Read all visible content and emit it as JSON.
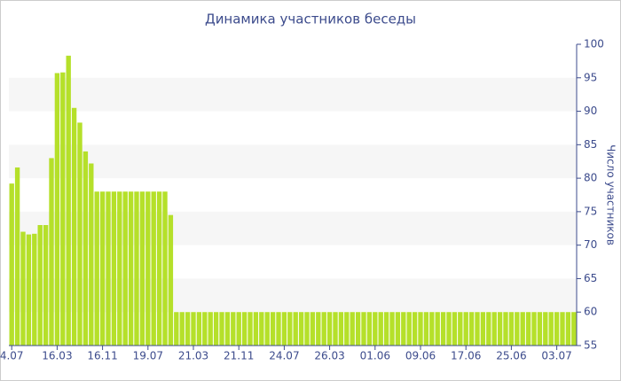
{
  "chart_data": {
    "type": "bar",
    "title": "Динамика участников беседы",
    "y_label": "Число участников",
    "categories": [
      "4.07",
      null,
      null,
      null,
      null,
      null,
      null,
      null,
      "16.03",
      null,
      null,
      null,
      null,
      null,
      null,
      null,
      "16.11",
      null,
      null,
      null,
      null,
      null,
      null,
      null,
      "19.07",
      null,
      null,
      null,
      null,
      null,
      null,
      null,
      "21.03",
      null,
      null,
      null,
      null,
      null,
      null,
      null,
      "21.11",
      null,
      null,
      null,
      null,
      null,
      null,
      null,
      "24.07",
      null,
      null,
      null,
      null,
      null,
      null,
      null,
      "26.03",
      null,
      null,
      null,
      null,
      null,
      null,
      null,
      "01.06",
      null,
      null,
      null,
      null,
      null,
      null,
      null,
      "09.06",
      null,
      null,
      null,
      null,
      null,
      null,
      null,
      "17.06",
      null,
      null,
      null,
      null,
      null,
      null,
      null,
      "25.06",
      null,
      null,
      null,
      null,
      null,
      null,
      null,
      "03.07",
      null,
      null,
      null
    ],
    "values": [
      79.2,
      81.6,
      72,
      71.6,
      71.7,
      73,
      73,
      83,
      95.7,
      95.8,
      98.3,
      90.5,
      88.3,
      84,
      82.2,
      78,
      78,
      78,
      78,
      78,
      78,
      78,
      78,
      78,
      78,
      78,
      78,
      78,
      74.5,
      60,
      60,
      60,
      60,
      60,
      60,
      60,
      60,
      60,
      60,
      60,
      60,
      60,
      60,
      60,
      60,
      60,
      60,
      60,
      60,
      60,
      60,
      60,
      60,
      60,
      60,
      60,
      60,
      60,
      60,
      60,
      60,
      60,
      60,
      60,
      60,
      60,
      60,
      60,
      60,
      60,
      60,
      60,
      60,
      60,
      60,
      60,
      60,
      60,
      60,
      60,
      60,
      60,
      60,
      60,
      60,
      60,
      60,
      60,
      60,
      60,
      60,
      60,
      60,
      60,
      60,
      60,
      60,
      60,
      60,
      60
    ],
    "color": "#b5e02a",
    "ylim": [
      55,
      100
    ],
    "yticks": [
      55,
      60,
      65,
      70,
      75,
      80,
      85,
      90,
      95,
      100
    ],
    "y_axis_side": "right",
    "grid": "bands"
  }
}
